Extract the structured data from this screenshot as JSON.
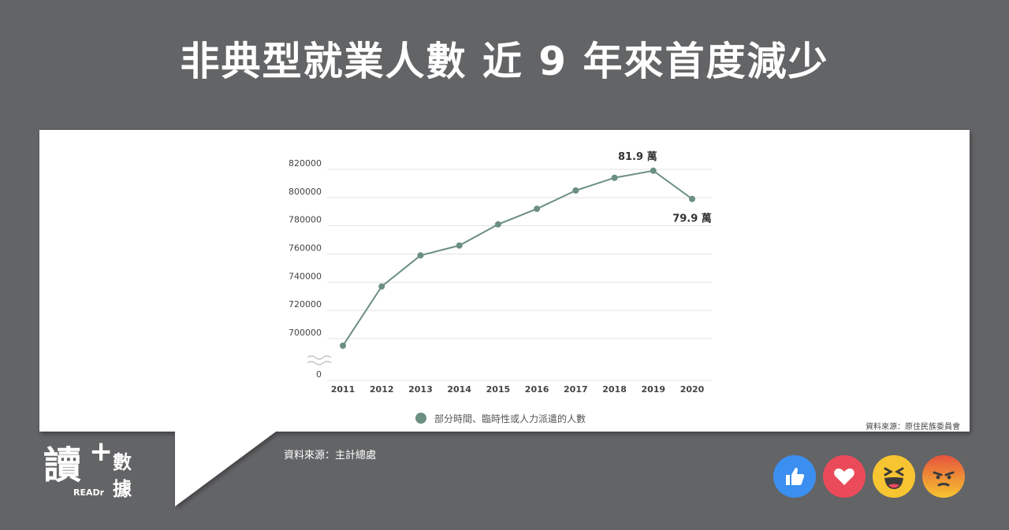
{
  "title": "非典型就業人數 近 9 年來首度減少",
  "chart_data": {
    "type": "line",
    "x": [
      "2011",
      "2012",
      "2013",
      "2014",
      "2015",
      "2016",
      "2017",
      "2018",
      "2019",
      "2020"
    ],
    "series": [
      {
        "name": "部分時間、臨時性或人力派遣的人數",
        "values": [
          695000,
          737000,
          759000,
          766000,
          781000,
          792000,
          805000,
          814000,
          819000,
          799000
        ]
      }
    ],
    "ylim": [
      690000,
      830000
    ],
    "yticks": [
      "0",
      "700000",
      "720000",
      "740000",
      "760000",
      "780000",
      "800000",
      "820000"
    ],
    "axis_break": true,
    "annotations": [
      {
        "x": "2019",
        "text": "81.9 萬"
      },
      {
        "x": "2020",
        "text": "79.9 萬"
      }
    ],
    "line_color": "#6b8f80",
    "grid": true,
    "legend_position": "bottom"
  },
  "legend_label": "部分時間、臨時性或人力派遣的人數",
  "inner_source": "資料來源：原住民族委員會",
  "outer_source": "資料來源：主計總處",
  "logo": {
    "char": "讀",
    "readr": "READr",
    "line1": "數",
    "line2": "據"
  },
  "reactions": [
    "like-icon",
    "love-icon",
    "haha-icon",
    "angry-icon"
  ],
  "colors": {
    "background": "#636466",
    "card": "#ffffff",
    "series": "#6b8f80"
  }
}
